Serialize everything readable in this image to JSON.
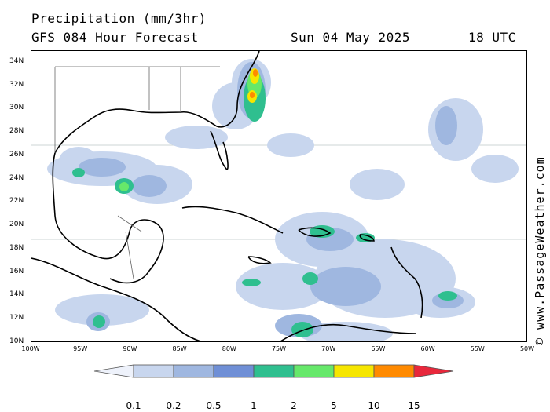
{
  "header": {
    "title": "Precipitation (mm/3hr)",
    "subtitle": "GFS 084 Hour Forecast",
    "date": "Sun 04 May 2025",
    "time": "18 UTC"
  },
  "watermark": "© www.PassageWeather.com",
  "axes": {
    "lat_labels": [
      "34N",
      "32N",
      "30N",
      "28N",
      "26N",
      "24N",
      "22N",
      "20N",
      "18N",
      "16N",
      "14N",
      "12N",
      "10N"
    ],
    "lon_labels": [
      "100W",
      "95W",
      "90W",
      "85W",
      "80W",
      "75W",
      "70W",
      "65W",
      "60W",
      "55W",
      "50W"
    ],
    "lat_range": [
      10,
      35
    ],
    "lon_range": [
      -100,
      -50
    ]
  },
  "legend": {
    "labels": [
      "0.1",
      "0.2",
      "0.5",
      "1",
      "2",
      "5",
      "10",
      "15"
    ],
    "colors": [
      "#eef2fb",
      "#c8d6ee",
      "#9fb7e0",
      "#6f8fd6",
      "#2fbf8f",
      "#66e86a",
      "#f6e600",
      "#ff8a00",
      "#e8283c"
    ]
  }
}
